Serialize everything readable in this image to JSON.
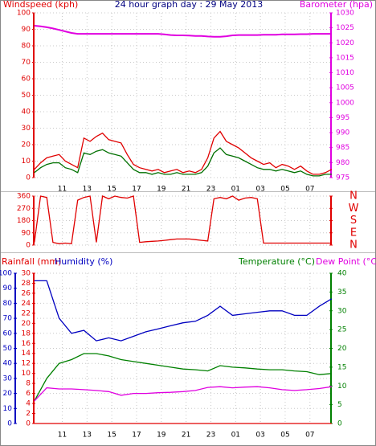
{
  "chart_data": [
    {
      "type": "line",
      "title": "24 hour graph day : 29 May 2013",
      "y_label": "Windspeed (kph)",
      "y2_label": "Barometer (hpa)",
      "x": [
        8.75,
        9.25,
        9.75,
        10.25,
        10.75,
        11.25,
        11.75,
        12.25,
        12.75,
        13.25,
        13.75,
        14.25,
        14.75,
        15.25,
        15.75,
        16.25,
        16.75,
        17.25,
        17.75,
        18.25,
        18.75,
        19.25,
        19.75,
        20.25,
        20.75,
        21.25,
        21.75,
        22.25,
        22.75,
        23.25,
        23.75,
        24.25,
        24.75,
        25.25,
        25.75,
        26.25,
        26.75,
        27.25,
        27.75,
        28.25,
        28.75,
        29.25,
        29.75,
        30.25,
        30.75,
        31.25,
        31.75,
        32.25,
        32.75
      ],
      "xlim": [
        8.7,
        32.7
      ],
      "xticks": [
        11,
        13,
        15,
        17,
        19,
        21,
        23,
        {
          "value": 25,
          "label": "01"
        },
        {
          "value": 27,
          "label": "03"
        },
        {
          "value": 29,
          "label": "05"
        },
        {
          "value": 31,
          "label": "07"
        }
      ],
      "ylim": [
        0,
        100
      ],
      "yticks": [
        0,
        10,
        20,
        30,
        40,
        50,
        60,
        70,
        80,
        90,
        100
      ],
      "y2lim": [
        975,
        1030
      ],
      "y2ticks": [
        975,
        980,
        985,
        990,
        995,
        1000,
        1005,
        1010,
        1015,
        1020,
        1025,
        1030
      ],
      "grid": true,
      "series": [
        {
          "color": "#e00000",
          "values": [
            5,
            9,
            12,
            13,
            14,
            10,
            8,
            6,
            24,
            22,
            25,
            27,
            23,
            22,
            21,
            14,
            8,
            6,
            5,
            4,
            5,
            3,
            4,
            5,
            3,
            4,
            3,
            5,
            12,
            24,
            28,
            22,
            20,
            18,
            15,
            12,
            10,
            8,
            9,
            6,
            8,
            7,
            5,
            7,
            4,
            2,
            2,
            3,
            5
          ]
        },
        {
          "color": "#007000",
          "values": [
            3,
            6,
            8,
            9,
            9,
            6,
            5,
            3,
            15,
            14,
            16,
            17,
            15,
            14,
            13,
            9,
            5,
            3,
            3,
            2,
            3,
            2,
            2,
            3,
            2,
            2,
            2,
            3,
            7,
            15,
            18,
            14,
            13,
            12,
            10,
            8,
            6,
            5,
            5,
            4,
            5,
            4,
            3,
            4,
            2,
            1,
            1,
            2,
            2
          ]
        },
        {
          "color": "#e000e0",
          "axis": "y2",
          "values": [
            1025.7,
            1025.5,
            1025.2,
            1024.8,
            1024.3,
            1023.8,
            1023.3,
            1023,
            1023,
            1023,
            1023,
            1023,
            1023,
            1023,
            1023,
            1023,
            1023,
            1023,
            1023,
            1023,
            1023,
            1022.8,
            1022.6,
            1022.5,
            1022.5,
            1022.4,
            1022.3,
            1022.3,
            1022.1,
            1022,
            1022,
            1022.2,
            1022.5,
            1022.6,
            1022.6,
            1022.6,
            1022.6,
            1022.7,
            1022.7,
            1022.7,
            1022.8,
            1022.8,
            1022.8,
            1022.9,
            1022.9,
            1023,
            1023,
            1023,
            1023
          ]
        }
      ]
    },
    {
      "type": "line",
      "x": [
        8.75,
        9.25,
        9.75,
        10.25,
        10.75,
        11.25,
        11.75,
        12.25,
        12.75,
        13.25,
        13.75,
        14.25,
        14.75,
        15.25,
        15.75,
        16.25,
        16.75,
        17.25,
        17.75,
        18.25,
        18.75,
        19.25,
        19.75,
        20.25,
        20.75,
        21.25,
        21.75,
        22.25,
        22.75,
        23.25,
        23.75,
        24.25,
        24.75,
        25.25,
        25.75,
        26.25,
        26.75,
        27.25,
        27.75,
        28.25,
        28.75,
        29.25,
        29.75,
        30.25,
        30.75,
        31.25,
        31.75,
        32.25,
        32.75
      ],
      "xlim": [
        8.7,
        32.7
      ],
      "ylim": [
        0,
        360
      ],
      "yticks": [
        0,
        90,
        180,
        270,
        360
      ],
      "y2lim": [
        0,
        360
      ],
      "y2ticks": [
        {
          "value": 0,
          "label": "N"
        },
        {
          "value": 90,
          "label": "E"
        },
        {
          "value": 180,
          "label": "S"
        },
        {
          "value": 270,
          "label": "W"
        },
        {
          "value": 360,
          "label": "N"
        }
      ],
      "grid": true,
      "series": [
        {
          "color": "#e00000",
          "values": [
            20,
            360,
            350,
            20,
            10,
            15,
            10,
            330,
            350,
            360,
            20,
            360,
            340,
            360,
            350,
            345,
            360,
            20,
            25,
            28,
            30,
            35,
            40,
            45,
            45,
            45,
            40,
            35,
            30,
            340,
            350,
            340,
            360,
            330,
            345,
            350,
            340,
            15,
            15,
            15,
            15,
            15,
            15,
            15,
            15,
            15,
            15,
            15,
            15
          ]
        }
      ]
    },
    {
      "type": "line",
      "x": [
        8.75,
        9.75,
        10.75,
        11.75,
        12.75,
        13.75,
        14.75,
        15.75,
        16.75,
        17.75,
        18.75,
        19.75,
        20.75,
        21.75,
        22.75,
        23.75,
        24.75,
        25.75,
        26.75,
        27.75,
        28.75,
        29.75,
        30.75,
        31.75,
        32.75
      ],
      "xlim": [
        8.7,
        32.7
      ],
      "xticks": [
        11,
        13,
        15,
        17,
        19,
        21,
        23,
        {
          "value": 25,
          "label": "01"
        },
        {
          "value": 27,
          "label": "03"
        },
        {
          "value": 29,
          "label": "05"
        },
        {
          "value": 31,
          "label": "07"
        }
      ],
      "ylim": [
        0,
        100
      ],
      "yticks": [
        0,
        10,
        20,
        30,
        40,
        50,
        60,
        70,
        80,
        90,
        100
      ],
      "y3lim": [
        0,
        30
      ],
      "y3ticks": [
        0,
        2,
        4,
        6,
        8,
        10,
        12,
        14,
        16,
        18,
        20,
        22,
        24,
        26,
        28,
        30
      ],
      "y2lim": [
        0,
        40
      ],
      "y2ticks": [
        0,
        5,
        10,
        15,
        20,
        25,
        30,
        35,
        40
      ],
      "grid": true,
      "series": [
        {
          "name": "Rainfall (mm)",
          "color": "#e00000",
          "axis": "y3",
          "values": [
            0,
            0,
            0,
            0,
            0,
            0,
            0,
            0,
            0,
            0,
            0,
            0,
            0,
            0,
            0,
            0,
            0,
            0,
            0,
            0,
            0,
            0,
            0,
            0,
            0
          ]
        },
        {
          "name": "Humidity (%)",
          "color": "#0000c0",
          "values": [
            95,
            95,
            70,
            60,
            62,
            55,
            57,
            55,
            58,
            61,
            63,
            65,
            67,
            68,
            72,
            78,
            72,
            73,
            74,
            75,
            75,
            72,
            72,
            78,
            83
          ]
        },
        {
          "name": "Temperature (°C)",
          "color": "#008000",
          "axis": "y2",
          "values": [
            6,
            12,
            16,
            17,
            18.6,
            18.6,
            18,
            17,
            16.5,
            16,
            15.5,
            15,
            14.5,
            14.3,
            14,
            15.4,
            15,
            14.8,
            14.5,
            14.3,
            14.3,
            14,
            13.8,
            13,
            13.3
          ]
        },
        {
          "name": "Dew Point (°C)",
          "color": "#e000e0",
          "axis": "y2",
          "values": [
            6,
            9.5,
            9.2,
            9.2,
            9,
            8.8,
            8.5,
            7.5,
            8,
            8,
            8.2,
            8.3,
            8.5,
            8.8,
            9.6,
            9.8,
            9.5,
            9.7,
            9.8,
            9.5,
            9,
            8.8,
            9,
            9.3,
            9.8
          ]
        }
      ]
    }
  ]
}
